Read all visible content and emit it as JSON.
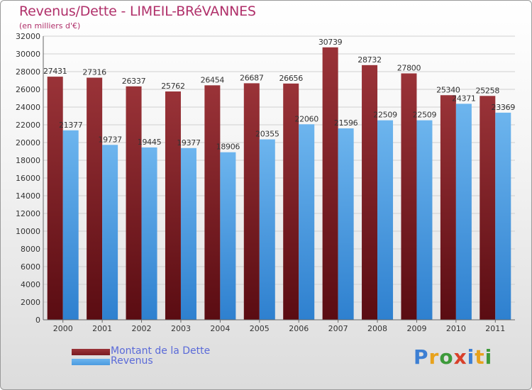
{
  "title": "Revenus/Dette - LIMEIL-BRéVANNES",
  "subtitle": "(en milliers d'€)",
  "brand": {
    "text": "Proxiti",
    "letter_colors": [
      "#3d7fd3",
      "#e8a21c",
      "#3d9a3a",
      "#d8402a",
      "#3d7fd3",
      "#e8a21c",
      "#3d9a3a"
    ]
  },
  "colors": {
    "dette": "#7a1c22",
    "revenus": "#4b9be0",
    "axis_text": "#333333",
    "grid": "#d0d0d0"
  },
  "chart_data": {
    "type": "bar",
    "categories": [
      "2000",
      "2001",
      "2002",
      "2003",
      "2004",
      "2005",
      "2006",
      "2007",
      "2008",
      "2009",
      "2010",
      "2011"
    ],
    "series": [
      {
        "name": "Montant de la Dette",
        "values": [
          27431,
          27316,
          26337,
          25762,
          26454,
          26687,
          26656,
          30739,
          28732,
          27800,
          25340,
          25258
        ]
      },
      {
        "name": "Revenus",
        "values": [
          21377,
          19737,
          19445,
          19377,
          18906,
          20355,
          22060,
          21596,
          22509,
          22509,
          24371,
          23369
        ]
      }
    ],
    "ylim": [
      0,
      32000
    ],
    "ytick_step": 2000,
    "grid": true,
    "legend": "bottom-left"
  }
}
